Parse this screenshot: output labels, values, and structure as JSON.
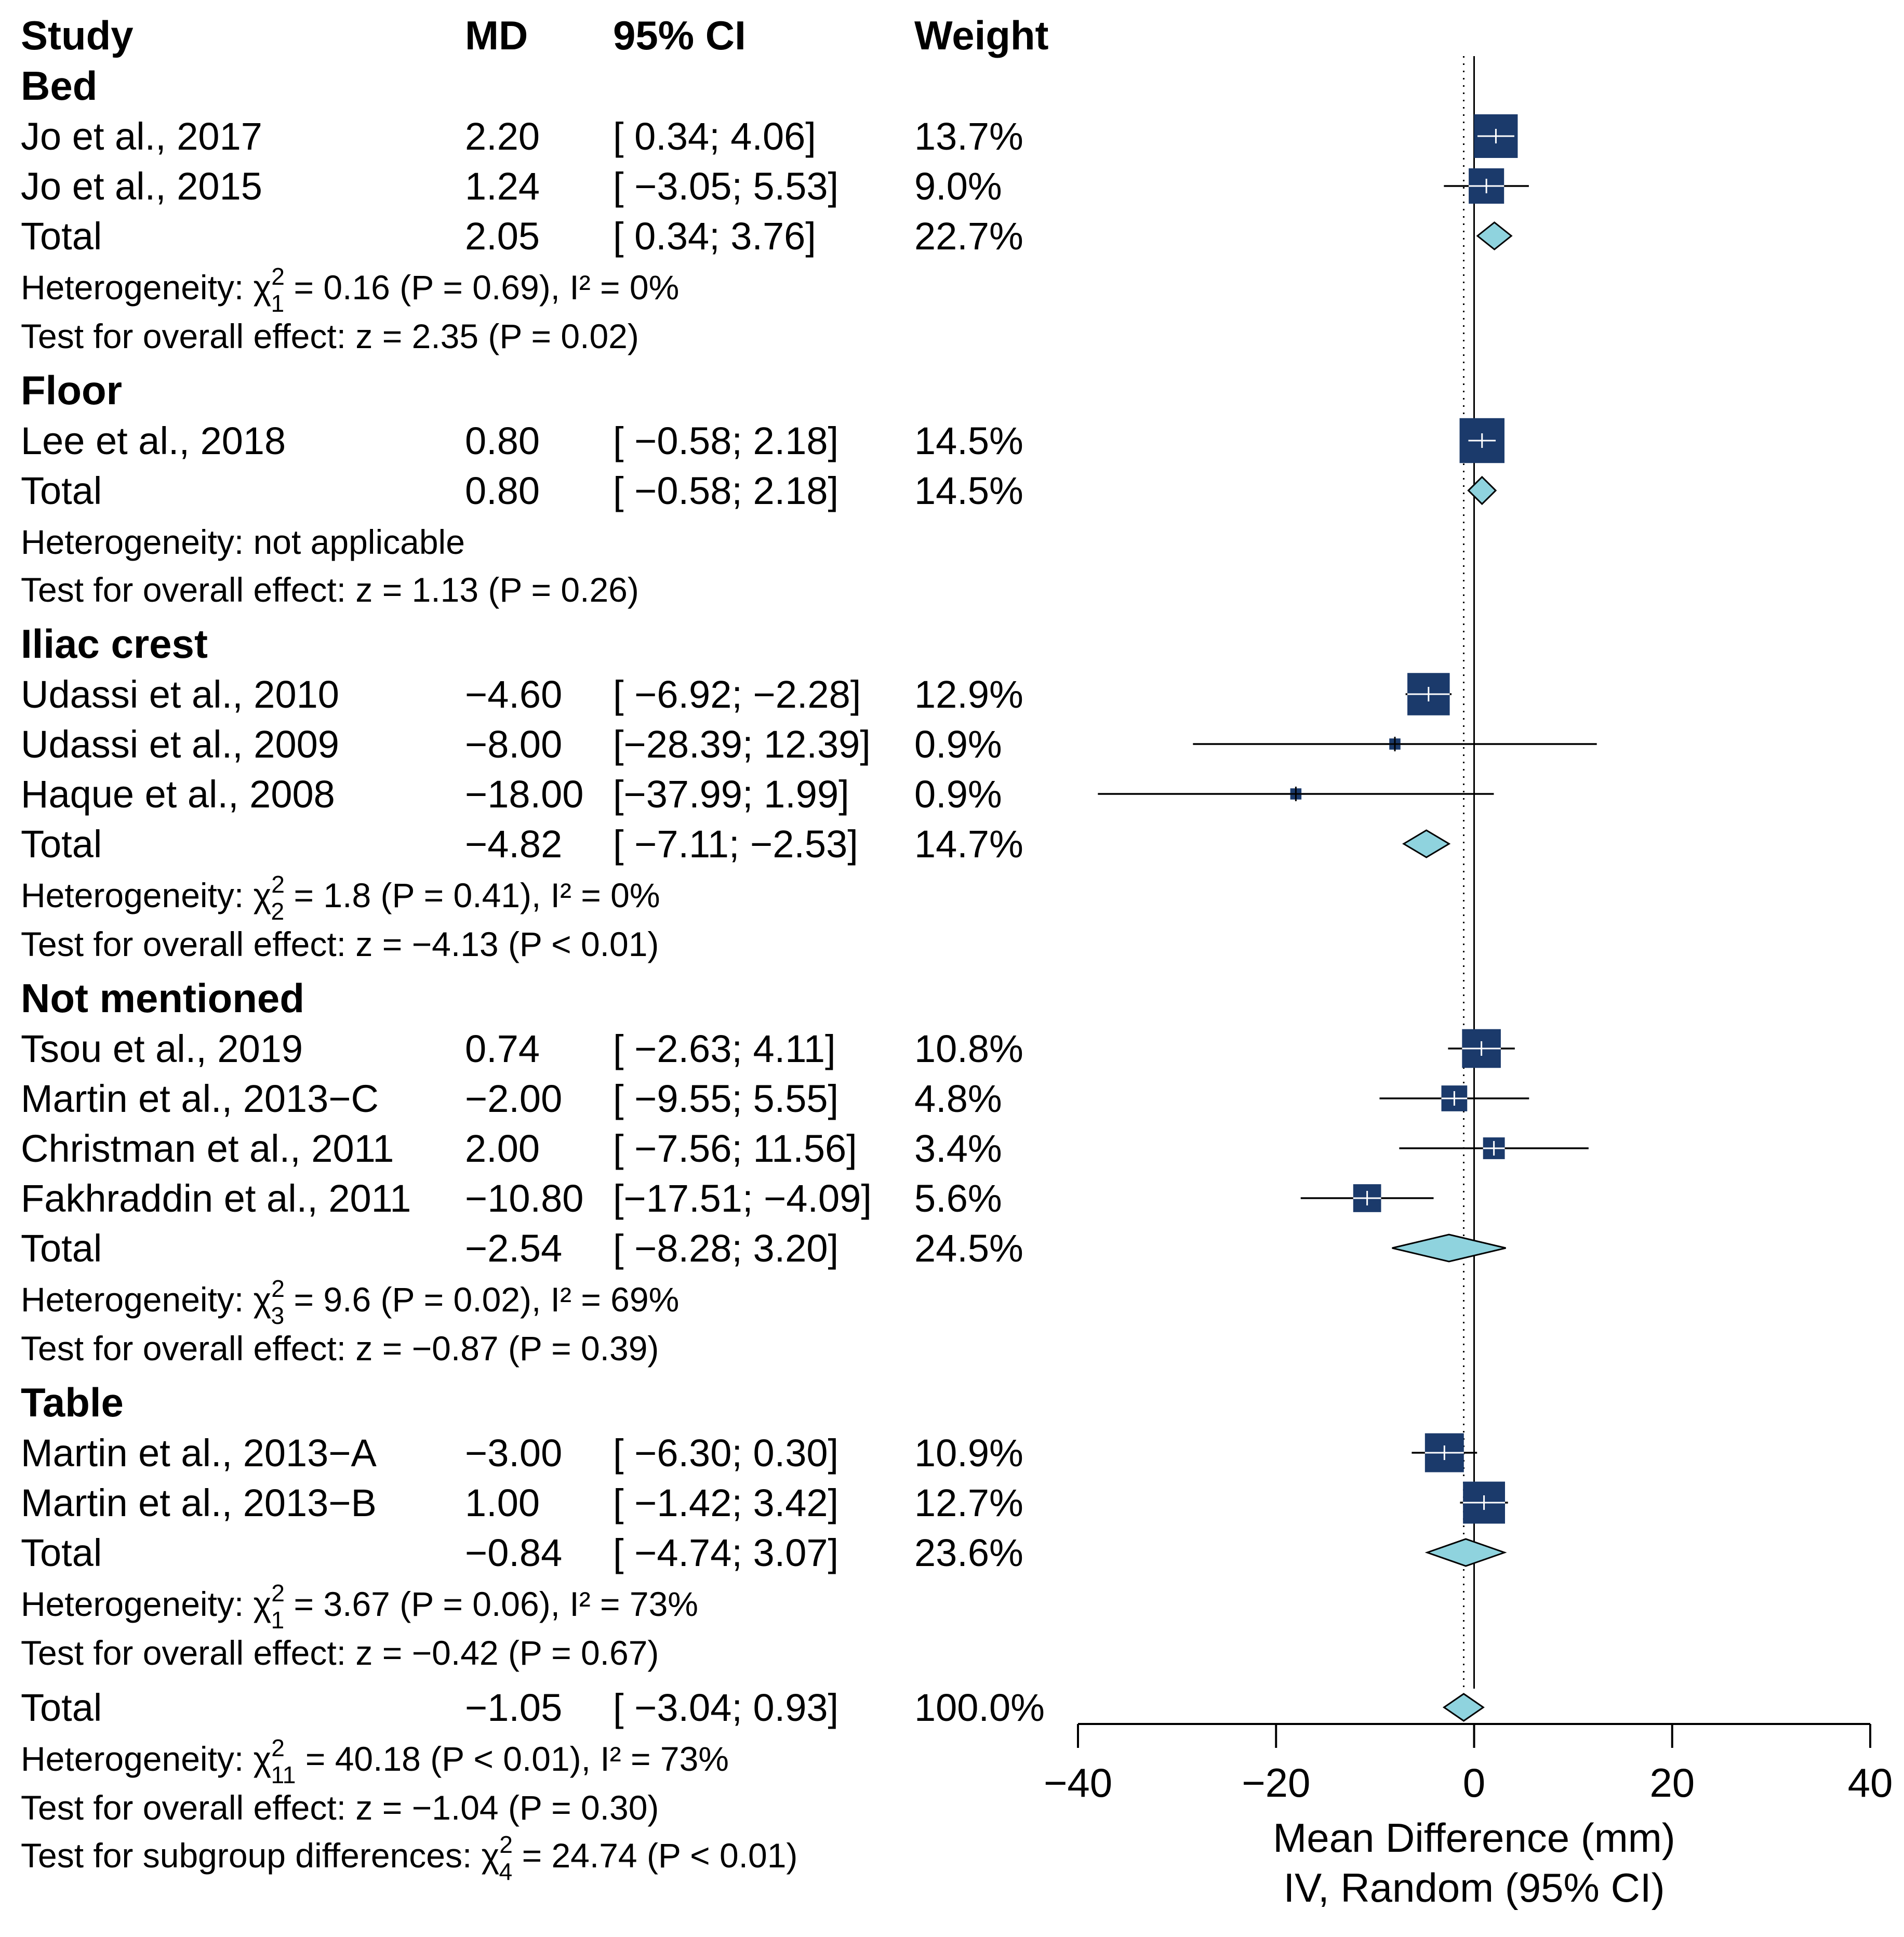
{
  "colors": {
    "square": "#1b3a6b",
    "diamond": "#8fd3de",
    "line": "#000000",
    "axis": "#000000"
  },
  "header": {
    "study": "Study",
    "md": "MD",
    "ci": "95% CI",
    "weight": "Weight"
  },
  "chart_data": {
    "type": "forest",
    "xlabel": "Mean Difference (mm)",
    "xlabel2": "IV, Random (95% CI)",
    "xlim": [
      -40,
      40
    ],
    "xticks": [
      -40,
      -20,
      0,
      20,
      40
    ],
    "xtick_labels": [
      "−40",
      "−20",
      "0",
      "20",
      "40"
    ],
    "overall_estimate": -1.05,
    "rows": [
      {
        "kind": "group",
        "text": "Bed"
      },
      {
        "kind": "study",
        "study": "Jo et al., 2017",
        "md_text": "2.20",
        "ci_text": "[ 0.34;  4.06]",
        "weight_text": "13.7%",
        "md": 2.2,
        "lo": 0.34,
        "hi": 4.06,
        "weight": 13.7
      },
      {
        "kind": "study",
        "study": "Jo et al., 2015",
        "md_text": "1.24",
        "ci_text": "[ −3.05;  5.53]",
        "weight_text": "9.0%",
        "md": 1.24,
        "lo": -3.05,
        "hi": 5.53,
        "weight": 9.0
      },
      {
        "kind": "total",
        "study": "Total",
        "md_text": "2.05",
        "ci_text": "[ 0.34;  3.76]",
        "weight_text": "22.7%",
        "md": 2.05,
        "lo": 0.34,
        "hi": 3.76
      },
      {
        "kind": "het",
        "label": "Heterogeneity: χ",
        "sub": "1",
        "sup": "2",
        "rest": " = 0.16 (P = 0.69), I² = 0%"
      },
      {
        "kind": "note",
        "text": "Test for overall effect: z = 2.35 (P = 0.02)"
      },
      {
        "kind": "group",
        "text": "Floor"
      },
      {
        "kind": "study",
        "study": "Lee et al., 2018",
        "md_text": "0.80",
        "ci_text": "[ −0.58;  2.18]",
        "weight_text": "14.5%",
        "md": 0.8,
        "lo": -0.58,
        "hi": 2.18,
        "weight": 14.5
      },
      {
        "kind": "total",
        "study": "Total",
        "md_text": "0.80",
        "ci_text": "[ −0.58;  2.18]",
        "weight_text": "14.5%",
        "md": 0.8,
        "lo": -0.58,
        "hi": 2.18
      },
      {
        "kind": "note",
        "text": "Heterogeneity: not applicable"
      },
      {
        "kind": "note",
        "text": "Test for overall effect: z = 1.13 (P = 0.26)"
      },
      {
        "kind": "group",
        "text": "Iliac crest"
      },
      {
        "kind": "study",
        "study": "Udassi et al., 2010",
        "md_text": "−4.60",
        "ci_text": "[ −6.92; −2.28]",
        "weight_text": "12.9%",
        "md": -4.6,
        "lo": -6.92,
        "hi": -2.28,
        "weight": 12.9
      },
      {
        "kind": "study",
        "study": "Udassi et al., 2009",
        "md_text": "−8.00",
        "ci_text": "[−28.39; 12.39]",
        "weight_text": "0.9%",
        "md": -8.0,
        "lo": -28.39,
        "hi": 12.39,
        "weight": 0.9
      },
      {
        "kind": "study",
        "study": "Haque et al., 2008",
        "md_text": "−18.00",
        "ci_text": "[−37.99;  1.99]",
        "weight_text": "0.9%",
        "md": -18.0,
        "lo": -37.99,
        "hi": 1.99,
        "weight": 0.9
      },
      {
        "kind": "total",
        "study": "Total",
        "md_text": "−4.82",
        "ci_text": "[ −7.11; −2.53]",
        "weight_text": "14.7%",
        "md": -4.82,
        "lo": -7.11,
        "hi": -2.53
      },
      {
        "kind": "het",
        "label": "Heterogeneity: χ",
        "sub": "2",
        "sup": "2",
        "rest": " = 1.8 (P = 0.41), I² = 0%"
      },
      {
        "kind": "note",
        "text": "Test for overall effect: z = −4.13 (P < 0.01)"
      },
      {
        "kind": "group",
        "text": "Not mentioned"
      },
      {
        "kind": "study",
        "study": "Tsou et al., 2019",
        "md_text": "0.74",
        "ci_text": "[ −2.63;  4.11]",
        "weight_text": "10.8%",
        "md": 0.74,
        "lo": -2.63,
        "hi": 4.11,
        "weight": 10.8
      },
      {
        "kind": "study",
        "study": "Martin et al., 2013−C",
        "md_text": "−2.00",
        "ci_text": "[ −9.55;  5.55]",
        "weight_text": "4.8%",
        "md": -2.0,
        "lo": -9.55,
        "hi": 5.55,
        "weight": 4.8
      },
      {
        "kind": "study",
        "study": "Christman et al., 2011",
        "md_text": "2.00",
        "ci_text": "[ −7.56; 11.56]",
        "weight_text": "3.4%",
        "md": 2.0,
        "lo": -7.56,
        "hi": 11.56,
        "weight": 3.4
      },
      {
        "kind": "study",
        "study": "Fakhraddin et al., 2011",
        "md_text": "−10.80",
        "ci_text": "[−17.51; −4.09]",
        "weight_text": "5.6%",
        "md": -10.8,
        "lo": -17.51,
        "hi": -4.09,
        "weight": 5.6
      },
      {
        "kind": "total",
        "study": "Total",
        "md_text": "−2.54",
        "ci_text": "[ −8.28;  3.20]",
        "weight_text": "24.5%",
        "md": -2.54,
        "lo": -8.28,
        "hi": 3.2
      },
      {
        "kind": "het",
        "label": "Heterogeneity: χ",
        "sub": "3",
        "sup": "2",
        "rest": " = 9.6 (P = 0.02), I² = 69%"
      },
      {
        "kind": "note",
        "text": "Test for overall effect: z = −0.87 (P = 0.39)"
      },
      {
        "kind": "group",
        "text": "Table"
      },
      {
        "kind": "study",
        "study": "Martin et al., 2013−A",
        "md_text": "−3.00",
        "ci_text": "[ −6.30;  0.30]",
        "weight_text": "10.9%",
        "md": -3.0,
        "lo": -6.3,
        "hi": 0.3,
        "weight": 10.9
      },
      {
        "kind": "study",
        "study": "Martin et al., 2013−B",
        "md_text": "1.00",
        "ci_text": "[ −1.42;  3.42]",
        "weight_text": "12.7%",
        "md": 1.0,
        "lo": -1.42,
        "hi": 3.42,
        "weight": 12.7
      },
      {
        "kind": "total",
        "study": "Total",
        "md_text": "−0.84",
        "ci_text": "[ −4.74;  3.07]",
        "weight_text": "23.6%",
        "md": -0.84,
        "lo": -4.74,
        "hi": 3.07
      },
      {
        "kind": "het",
        "label": "Heterogeneity: χ",
        "sub": "1",
        "sup": "2",
        "rest": " = 3.67 (P = 0.06), I² = 73%"
      },
      {
        "kind": "note",
        "text": "Test for overall effect: z = −0.42 (P = 0.67)"
      },
      {
        "kind": "total",
        "study": "Total",
        "md_text": "−1.05",
        "ci_text": "[ −3.04;  0.93]",
        "weight_text": "100.0%",
        "md": -1.05,
        "lo": -3.04,
        "hi": 0.93
      },
      {
        "kind": "het",
        "label": "Heterogeneity: χ",
        "sub": "11",
        "sup": "2",
        "rest": " = 40.18 (P < 0.01), I² = 73%"
      },
      {
        "kind": "note",
        "text": "Test for overall effect: z = −1.04 (P = 0.30)"
      },
      {
        "kind": "het",
        "label": "Test for subgroup differences: χ",
        "sub": "4",
        "sup": "2",
        "rest": " = 24.74 (P < 0.01)"
      }
    ]
  }
}
